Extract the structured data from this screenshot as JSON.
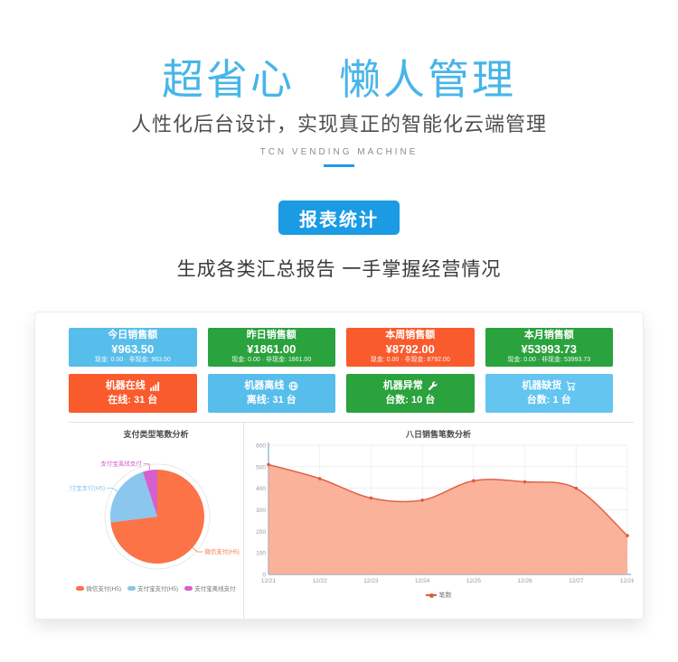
{
  "header": {
    "title": "超省心　懒人管理",
    "subtitle": "人性化后台设计，实现真正的智能化云端管理",
    "brand": "TCN VENDING MACHINE"
  },
  "section": {
    "button_label": "报表统计",
    "description": "生成各类汇总报告 一手掌握经营情况",
    "accent_color": "#1a9be4"
  },
  "dashboard": {
    "sales_cards": [
      {
        "title": "今日销售额",
        "value": "¥963.50",
        "detail": "现金: 0.00 · 非现金: 963.50",
        "color": "#57bdea"
      },
      {
        "title": "昨日销售额",
        "value": "¥1861.00",
        "detail": "现金: 0.00 · 非现金: 1861.00",
        "color": "#2aa23d"
      },
      {
        "title": "本周销售额",
        "value": "¥8792.00",
        "detail": "现金: 0.00 · 非现金: 8792.00",
        "color": "#f95b2d"
      },
      {
        "title": "本月销售额",
        "value": "¥53993.73",
        "detail": "现金: 0.00 · 非现金: 53993.73",
        "color": "#2aa23d"
      }
    ],
    "machine_cards": [
      {
        "title": "机器在线",
        "icon": "signal-icon",
        "status": "在线: 31 台",
        "color": "#f95b2d"
      },
      {
        "title": "机器离线",
        "icon": "globe-icon",
        "status": "离线: 31 台",
        "color": "#57bdea"
      },
      {
        "title": "机器异常",
        "icon": "wrench-icon",
        "status": "台数: 10 台",
        "color": "#2aa23d"
      },
      {
        "title": "机器缺货",
        "icon": "cart-icon",
        "status": "台数: 1 台",
        "color": "#63c5f0"
      }
    ]
  },
  "chart_data": [
    {
      "type": "pie",
      "title": "支付类型笔数分析",
      "slices": [
        {
          "label": "微信支付(H5)",
          "value": 73,
          "color": "#fb7347"
        },
        {
          "label": "支付宝支付(H5)",
          "value": 22,
          "color": "#8ac6ee"
        },
        {
          "label": "支付宝离线支付",
          "value": 5,
          "color": "#d55fcf"
        }
      ],
      "legend_position": "bottom",
      "start_angle": "12-oclock-clockwise"
    },
    {
      "type": "area",
      "title": "八日销售笔数分析",
      "x": [
        "12/21",
        "12/22",
        "12/23",
        "12/24",
        "12/25",
        "12/26",
        "12/27",
        "12/28"
      ],
      "series": [
        {
          "name": "笔数",
          "values": [
            510,
            445,
            355,
            345,
            435,
            430,
            400,
            180
          ],
          "line_color": "#e05a40",
          "fill_color": "rgba(249,164,136,0.85)"
        }
      ],
      "ylabel": "",
      "xlabel": "",
      "ylim": [
        0,
        600
      ],
      "yticks": [
        0,
        100,
        200,
        300,
        400,
        500,
        600
      ],
      "grid": true,
      "axis_color": "#7badd6",
      "legend_position": "bottom"
    }
  ]
}
